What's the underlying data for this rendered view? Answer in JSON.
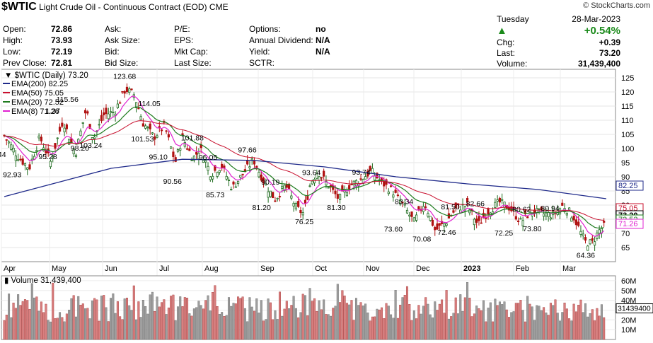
{
  "header": {
    "symbol": "$WTIC",
    "name": "Light Crude Oil - Continuous Contract (EOD)",
    "exchange": "CME",
    "brand": "© StockCharts.com",
    "day": "Tuesday",
    "date": "28-Mar-2023",
    "change_pct": "+0.54%",
    "arrow": "▲",
    "arrow_color": "#1a8a1a",
    "quote": [
      {
        "label": "Open:",
        "value": "72.86"
      },
      {
        "label": "High:",
        "value": "73.93"
      },
      {
        "label": "Low:",
        "value": "72.19"
      },
      {
        "label": "Prev Close:",
        "value": "72.81"
      }
    ],
    "quote2": [
      {
        "label": "Ask:",
        "value": ""
      },
      {
        "label": "Ask Size:",
        "value": ""
      },
      {
        "label": "Bid:",
        "value": ""
      },
      {
        "label": "Bid Size:",
        "value": ""
      }
    ],
    "quote3": [
      {
        "label": "P/E:",
        "value": ""
      },
      {
        "label": "EPS:",
        "value": ""
      },
      {
        "label": "Mkt Cap:",
        "value": ""
      },
      {
        "label": "Last Size:",
        "value": ""
      }
    ],
    "quote4": [
      {
        "label": "Options:",
        "value": "no"
      },
      {
        "label": "Annual Dividend:",
        "value": "N/A"
      },
      {
        "label": "Yield:",
        "value": "N/A"
      },
      {
        "label": "SCTR:",
        "value": ""
      }
    ],
    "right": [
      {
        "label": "Chg:",
        "value": "+0.39"
      },
      {
        "label": "Last:",
        "value": "73.20"
      },
      {
        "label": "Volume:",
        "value": "31,439,400"
      }
    ]
  },
  "chart_data": [
    {
      "type": "candlestick",
      "title": "$WTIC (Daily) 73.20",
      "ylim": [
        60,
        128
      ],
      "yticks": [
        "65",
        "70",
        "75",
        "80",
        "85",
        "90",
        "95",
        "100",
        "105",
        "110",
        "115",
        "120",
        "125"
      ],
      "xticks": [
        "Apr",
        "May",
        "Jun",
        "Jul",
        "Aug",
        "Sep",
        "Oct",
        "Nov",
        "Dec",
        "2023",
        "Feb",
        "Mar"
      ],
      "legend": [
        {
          "label": "EMA(200) 82.25",
          "color": "#1f2a8a"
        },
        {
          "label": "EMA(50) 75.05",
          "color": "#c8102e"
        },
        {
          "label": "EMA(20) 72.52",
          "color": "#1e7b1e"
        },
        {
          "label": "EMA(8) 71.26",
          "color": "#e020d0"
        }
      ],
      "price_key": [
        {
          "day": 0,
          "price": 104.5
        },
        {
          "day": 8,
          "price": 97
        },
        {
          "day": 14,
          "price": 93
        },
        {
          "day": 20,
          "price": 104
        },
        {
          "day": 26,
          "price": 95.3
        },
        {
          "day": 33,
          "price": 110
        },
        {
          "day": 40,
          "price": 98.2
        },
        {
          "day": 46,
          "price": 114
        },
        {
          "day": 50,
          "price": 103.2
        },
        {
          "day": 56,
          "price": 112
        },
        {
          "day": 62,
          "price": 113
        },
        {
          "day": 68,
          "price": 121
        },
        {
          "day": 73,
          "price": 119
        },
        {
          "day": 78,
          "price": 109
        },
        {
          "day": 84,
          "price": 104
        },
        {
          "day": 90,
          "price": 108
        },
        {
          "day": 96,
          "price": 95.1
        },
        {
          "day": 100,
          "price": 104
        },
        {
          "day": 106,
          "price": 96.5
        },
        {
          "day": 110,
          "price": 100
        },
        {
          "day": 116,
          "price": 91
        },
        {
          "day": 122,
          "price": 94
        },
        {
          "day": 128,
          "price": 86
        },
        {
          "day": 134,
          "price": 91
        },
        {
          "day": 140,
          "price": 96
        },
        {
          "day": 146,
          "price": 88
        },
        {
          "day": 152,
          "price": 82
        },
        {
          "day": 158,
          "price": 87
        },
        {
          "day": 164,
          "price": 79
        },
        {
          "day": 168,
          "price": 77
        },
        {
          "day": 172,
          "price": 88
        },
        {
          "day": 176,
          "price": 92
        },
        {
          "day": 182,
          "price": 87
        },
        {
          "day": 188,
          "price": 82
        },
        {
          "day": 194,
          "price": 87
        },
        {
          "day": 200,
          "price": 89
        },
        {
          "day": 206,
          "price": 92
        },
        {
          "day": 212,
          "price": 88
        },
        {
          "day": 218,
          "price": 85
        },
        {
          "day": 224,
          "price": 80
        },
        {
          "day": 230,
          "price": 74
        },
        {
          "day": 236,
          "price": 81
        },
        {
          "day": 242,
          "price": 71
        },
        {
          "day": 248,
          "price": 74
        },
        {
          "day": 254,
          "price": 79
        },
        {
          "day": 260,
          "price": 80
        },
        {
          "day": 266,
          "price": 73
        },
        {
          "day": 272,
          "price": 78
        },
        {
          "day": 278,
          "price": 81
        },
        {
          "day": 284,
          "price": 79
        },
        {
          "day": 290,
          "price": 74
        },
        {
          "day": 296,
          "price": 78
        },
        {
          "day": 302,
          "price": 77
        },
        {
          "day": 308,
          "price": 76.5
        },
        {
          "day": 314,
          "price": 80
        },
        {
          "day": 320,
          "price": 75.5
        },
        {
          "day": 326,
          "price": 67
        },
        {
          "day": 330,
          "price": 66.5
        },
        {
          "day": 334,
          "price": 71
        },
        {
          "day": 338,
          "price": 73.2
        }
      ],
      "annotations": [
        {
          "day": 4,
          "price": 92.93,
          "text": "92.93"
        },
        {
          "day": 0,
          "price": 96,
          "text": ".44"
        },
        {
          "day": 24,
          "price": 95.28,
          "text": "95.28"
        },
        {
          "day": 34,
          "price": 115.56,
          "text": "115.56"
        },
        {
          "day": 28,
          "price": 111.37,
          "text": "1.37"
        },
        {
          "day": 42,
          "price": 98.2,
          "text": "98.20"
        },
        {
          "day": 47,
          "price": 103.24,
          "text": "103.24"
        },
        {
          "day": 66,
          "price": 123.68,
          "text": "123.68"
        },
        {
          "day": 80,
          "price": 114.05,
          "text": "114.05"
        },
        {
          "day": 76,
          "price": 101.53,
          "text": "101.53"
        },
        {
          "day": 86,
          "price": 95.1,
          "text": "95.10"
        },
        {
          "day": 104,
          "price": 101.88,
          "text": "101.88"
        },
        {
          "day": 94,
          "price": 90.56,
          "text": "90.56"
        },
        {
          "day": 114,
          "price": 95.05,
          "text": "95.05"
        },
        {
          "day": 118,
          "price": 85.73,
          "text": "85.73"
        },
        {
          "day": 136,
          "price": 97.66,
          "text": "97.66"
        },
        {
          "day": 149,
          "price": 90.19,
          "text": "90.19"
        },
        {
          "day": 144,
          "price": 81.2,
          "text": "81.20"
        },
        {
          "day": 168,
          "price": 76.25,
          "text": "76.25"
        },
        {
          "day": 172,
          "price": 93.64,
          "text": "93.64"
        },
        {
          "day": 186,
          "price": 81.3,
          "text": "81.30"
        },
        {
          "day": 200,
          "price": 93.74,
          "text": "93.74"
        },
        {
          "day": 224,
          "price": 83.34,
          "text": "83.34"
        },
        {
          "day": 218,
          "price": 73.6,
          "text": "73.60"
        },
        {
          "day": 234,
          "price": 70.08,
          "text": "70.08"
        },
        {
          "day": 250,
          "price": 81.5,
          "text": "81.50"
        },
        {
          "day": 248,
          "price": 72.46,
          "text": "72.46"
        },
        {
          "day": 264,
          "price": 82.66,
          "text": "82.66"
        },
        {
          "day": 280,
          "price": 72.25,
          "text": "72.25"
        },
        {
          "day": 290,
          "price": 80.62,
          "text": "80.62"
        },
        {
          "day": 306,
          "price": 80.94,
          "text": "80.94"
        },
        {
          "day": 296,
          "price": 73.8,
          "text": "73.80"
        },
        {
          "day": 326,
          "price": 64.36,
          "text": "64.36"
        }
      ],
      "right_tags": [
        {
          "value": "82.25",
          "color": "#1f2a8a"
        },
        {
          "value": "75.05",
          "color": "#c8102e"
        },
        {
          "value": "73.20",
          "color": "#000000"
        },
        {
          "value": "72.52",
          "color": "#1e7b1e"
        },
        {
          "value": "71.26",
          "color": "#e020d0"
        }
      ],
      "up_color": "#1e6b1e",
      "down_color": "#b01010"
    },
    {
      "type": "bar",
      "title": "Volume 31,439,400",
      "yticks": [
        "10M",
        "20M",
        "30M",
        "40M",
        "50M",
        "60M"
      ],
      "ylim": [
        0,
        65
      ],
      "last_tag": "31439400",
      "up_color": "#9e9e9e",
      "down_color": "#d97f7f"
    }
  ]
}
